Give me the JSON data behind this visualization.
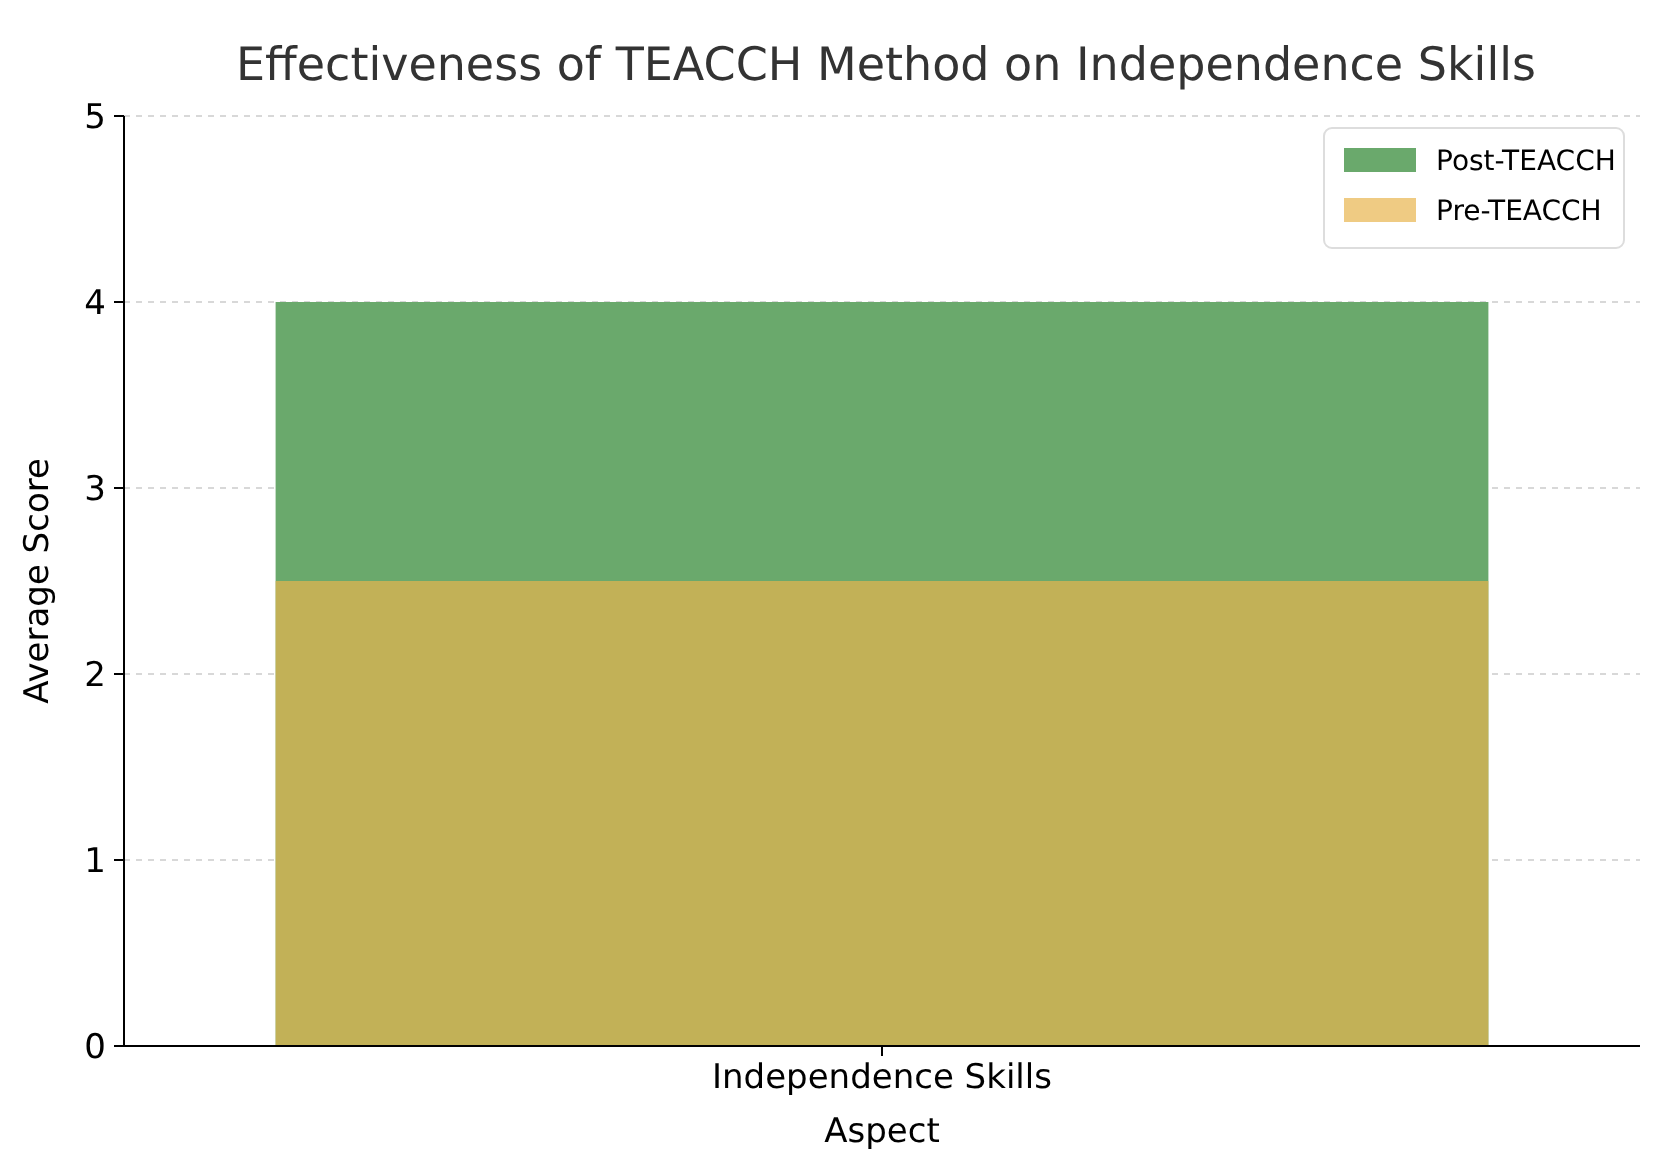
{
  "chart_data": {
    "type": "bar",
    "title": "Effectiveness of TEACCH Method on Independence Skills",
    "xlabel": "Aspect",
    "ylabel": "Average Score",
    "categories": [
      "Independence Skills"
    ],
    "series": [
      {
        "name": "Post-TEACCH",
        "color": "#6aa96c",
        "values": [
          4
        ]
      },
      {
        "name": "Pre-TEACCH",
        "color": "#e8b54e",
        "values": [
          2.5
        ]
      }
    ],
    "ylim": [
      0,
      5
    ],
    "yticks": [
      0,
      1,
      2,
      3,
      4,
      5
    ],
    "grid": "y",
    "legend": "top right"
  }
}
